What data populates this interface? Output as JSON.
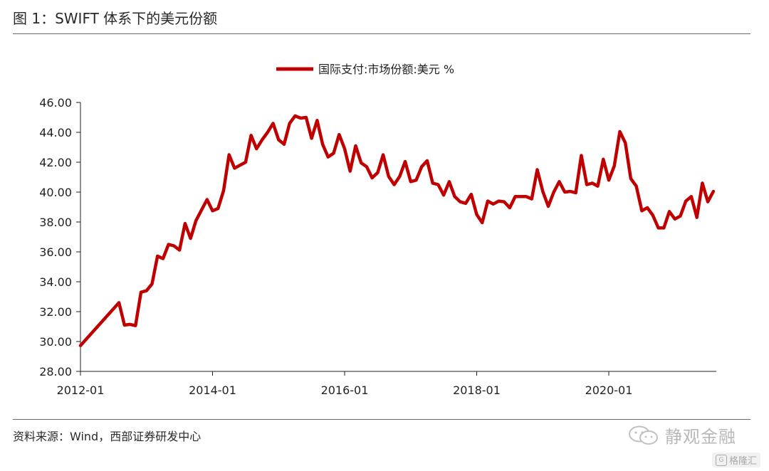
{
  "figure": {
    "title": "图 1：SWIFT 体系下的美元份额",
    "source": "资料来源：Wind，西部证券研发中心"
  },
  "watermark": {
    "brand": "静观金融",
    "icon": "wechat-icon"
  },
  "badge": {
    "text": "格隆汇",
    "icon": "g-logo-icon"
  },
  "chart_data": {
    "type": "line",
    "title": "",
    "xlabel": "",
    "ylabel": "",
    "legend_position": "top-center",
    "grid": false,
    "x_ticks": [
      "2012-01",
      "2014-01",
      "2016-01",
      "2018-01",
      "2020-01"
    ],
    "y_ticks": [
      "28.00",
      "30.00",
      "32.00",
      "34.00",
      "36.00",
      "38.00",
      "40.00",
      "42.00",
      "44.00",
      "46.00"
    ],
    "ylim": [
      28,
      46
    ],
    "series": [
      {
        "name": "国际支付:市场份额:美元 %",
        "color": "#c00000",
        "x": [
          "2012-01",
          "2012-08",
          "2012-09",
          "2012-10",
          "2012-11",
          "2012-12",
          "2013-01",
          "2013-02",
          "2013-03",
          "2013-04",
          "2013-05",
          "2013-06",
          "2013-07",
          "2013-08",
          "2013-09",
          "2013-10",
          "2013-11",
          "2013-12",
          "2014-01",
          "2014-02",
          "2014-03",
          "2014-04",
          "2014-05",
          "2014-06",
          "2014-07",
          "2014-08",
          "2014-09",
          "2014-10",
          "2014-11",
          "2014-12",
          "2015-01",
          "2015-02",
          "2015-03",
          "2015-04",
          "2015-05",
          "2015-06",
          "2015-07",
          "2015-08",
          "2015-09",
          "2015-10",
          "2015-11",
          "2015-12",
          "2016-01",
          "2016-02",
          "2016-03",
          "2016-04",
          "2016-05",
          "2016-06",
          "2016-07",
          "2016-08",
          "2016-09",
          "2016-10",
          "2016-11",
          "2016-12",
          "2017-01",
          "2017-02",
          "2017-03",
          "2017-04",
          "2017-05",
          "2017-06",
          "2017-07",
          "2017-08",
          "2017-09",
          "2017-10",
          "2017-11",
          "2017-12",
          "2018-01",
          "2018-02",
          "2018-03",
          "2018-04",
          "2018-05",
          "2018-06",
          "2018-07",
          "2018-08",
          "2018-09",
          "2018-10",
          "2018-11",
          "2018-12",
          "2019-01",
          "2019-02",
          "2019-03",
          "2019-04",
          "2019-05",
          "2019-06",
          "2019-07",
          "2019-08",
          "2019-09",
          "2019-10",
          "2019-11",
          "2019-12",
          "2020-01",
          "2020-02",
          "2020-03",
          "2020-04",
          "2020-05",
          "2020-06",
          "2020-07",
          "2020-08",
          "2020-09",
          "2020-10",
          "2020-11",
          "2020-12",
          "2021-01",
          "2021-02",
          "2021-03",
          "2021-04",
          "2021-05",
          "2021-06",
          "2021-07",
          "2021-08"
        ],
        "values": [
          29.73,
          32.6,
          31.1,
          31.15,
          31.06,
          33.3,
          33.4,
          33.85,
          35.72,
          35.55,
          36.5,
          36.4,
          36.12,
          37.9,
          36.9,
          38.1,
          38.8,
          39.5,
          38.75,
          38.9,
          40.1,
          42.5,
          41.6,
          41.8,
          42.0,
          43.8,
          42.9,
          43.5,
          44.0,
          44.6,
          43.5,
          43.2,
          44.6,
          45.1,
          44.95,
          45.0,
          43.6,
          44.8,
          43.2,
          42.35,
          42.6,
          43.85,
          42.9,
          41.4,
          43.1,
          41.95,
          41.7,
          40.95,
          41.3,
          42.5,
          41.05,
          40.5,
          41.05,
          42.05,
          40.7,
          40.8,
          41.7,
          42.1,
          40.6,
          40.5,
          39.8,
          40.7,
          39.7,
          39.35,
          39.25,
          39.85,
          38.5,
          37.95,
          39.4,
          39.2,
          39.4,
          39.35,
          38.95,
          39.7,
          39.7,
          39.7,
          39.55,
          41.5,
          40.05,
          39.05,
          40.0,
          40.7,
          40.0,
          40.05,
          39.95,
          42.45,
          40.5,
          40.6,
          40.4,
          42.2,
          40.8,
          41.75,
          44.05,
          43.3,
          40.9,
          40.4,
          38.75,
          38.95,
          38.45,
          37.6,
          37.6,
          38.7,
          38.2,
          38.4,
          39.4,
          39.7,
          38.3,
          40.6,
          39.35,
          40.05
        ]
      }
    ]
  }
}
